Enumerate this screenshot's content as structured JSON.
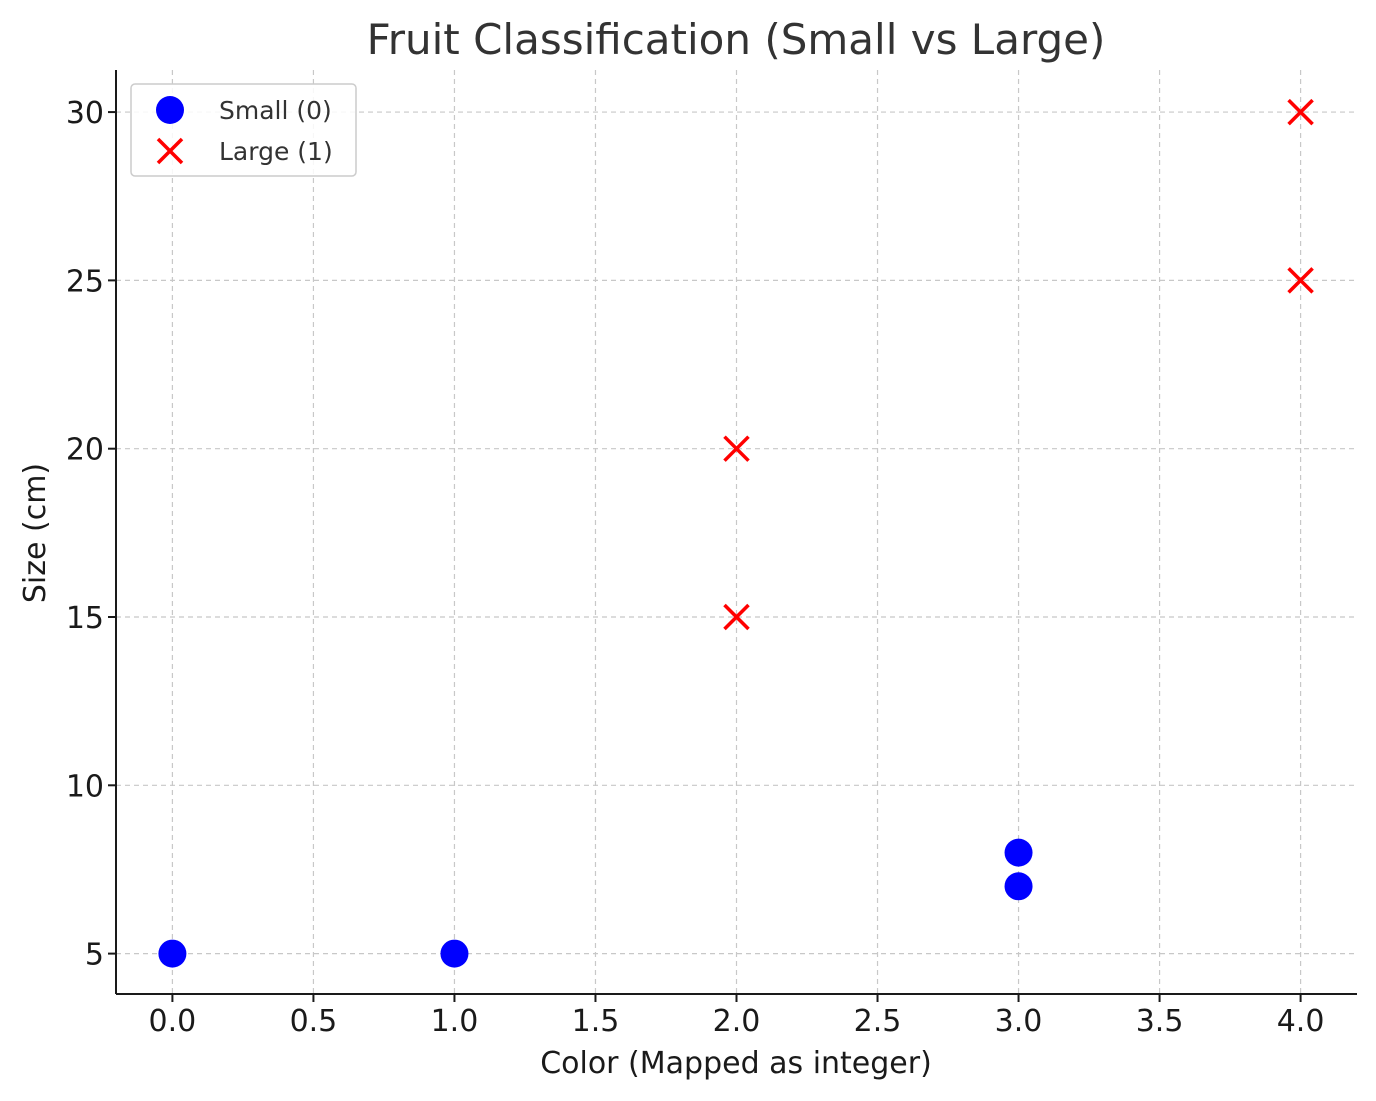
{
  "chart_data": {
    "type": "scatter",
    "title": "Fruit Classification (Small vs Large)",
    "xlabel": "Color (Mapped as integer)",
    "ylabel": "Size (cm)",
    "xlim": [
      -0.2,
      4.2
    ],
    "ylim": [
      3.8,
      31.25
    ],
    "xticks": [
      0.0,
      0.5,
      1.0,
      1.5,
      2.0,
      2.5,
      3.0,
      3.5,
      4.0
    ],
    "xtick_labels": [
      "0.0",
      "0.5",
      "1.0",
      "1.5",
      "2.0",
      "2.5",
      "3.0",
      "3.5",
      "4.0"
    ],
    "yticks": [
      5,
      10,
      15,
      20,
      25,
      30
    ],
    "ytick_labels": [
      "5",
      "10",
      "15",
      "20",
      "25",
      "30"
    ],
    "grid": true,
    "legend_position": "top-left",
    "series": [
      {
        "name": "Small (0)",
        "marker": "circle",
        "color": "#0000ff",
        "points": [
          {
            "x": 0,
            "y": 5
          },
          {
            "x": 1,
            "y": 5
          },
          {
            "x": 3,
            "y": 7
          },
          {
            "x": 3,
            "y": 8
          }
        ]
      },
      {
        "name": "Large (1)",
        "marker": "x",
        "color": "#ff0000",
        "points": [
          {
            "x": 2,
            "y": 15
          },
          {
            "x": 2,
            "y": 20
          },
          {
            "x": 4,
            "y": 25
          },
          {
            "x": 4,
            "y": 30
          }
        ]
      }
    ]
  }
}
